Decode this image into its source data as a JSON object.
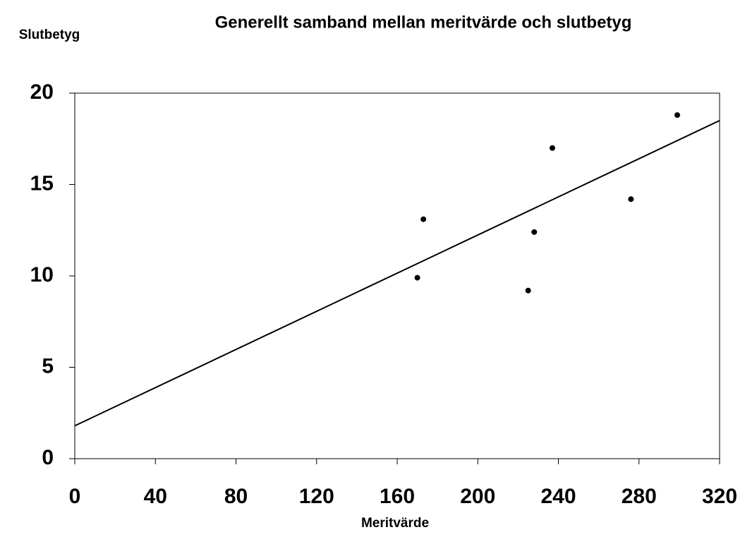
{
  "chart_data": {
    "type": "scatter",
    "title": "Generellt samband mellan meritvärde och slutbetyg",
    "y_label": "Slutbetyg",
    "x_label": "Meritvärde",
    "x": [
      170,
      173,
      225,
      228,
      237,
      276,
      299
    ],
    "values": [
      9.9,
      13.1,
      9.2,
      12.4,
      17.0,
      14.2,
      18.8
    ],
    "color": "#000000",
    "trendline": {
      "x": [
        0,
        320
      ],
      "values": [
        1.8,
        18.5
      ],
      "color": "#000000"
    },
    "xlim": [
      0,
      320
    ],
    "xticks": [
      0,
      40,
      80,
      120,
      160,
      200,
      240,
      280,
      320
    ],
    "ylim": [
      0,
      20
    ],
    "yticks": [
      0,
      5,
      10,
      15,
      20
    ],
    "grid": false
  }
}
